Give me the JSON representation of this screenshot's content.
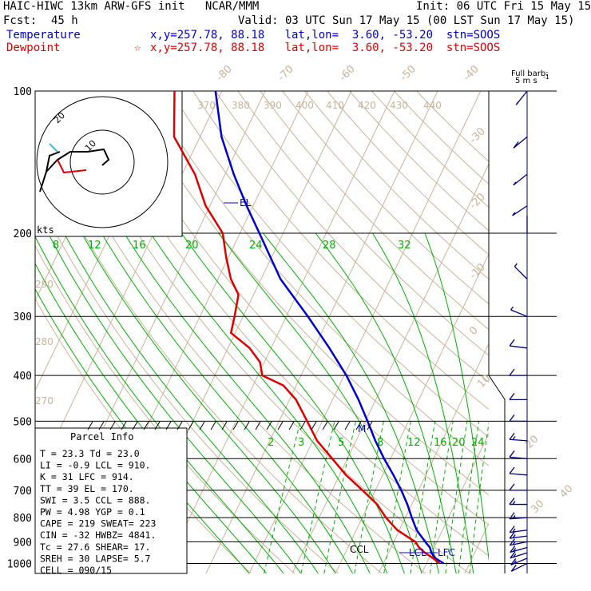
{
  "header": {
    "model": "HAIC-HIWC 13km ARW-GFS init   NCAR/MMM",
    "init": "Init: 06 UTC Fri 15 May 15",
    "fcst_label": "Fcst:",
    "fcst_value": "45 h",
    "valid": "Valid: 03 UTC Sun 17 May 15 (00 LST Sun 17 May 15)",
    "temp_label": "Temperature",
    "temp_info": "x,y=257.78, 88.18   lat,lon=  3.60, -53.20  stn=SOOS",
    "dew_label": "Dewpoint",
    "dew_star": "☆",
    "dew_info": "x,y=257.78, 88.18   lat,lon=  3.60, -53.20  stn=SOOS",
    "barb_note_1": "Full barb:",
    "barb_note_2": "5 m s",
    "barb_note_exp": "-1"
  },
  "chart_data": {
    "type": "line",
    "title": "",
    "xlabel": "",
    "ylabel": "",
    "pressure_ticks": [
      "100",
      "200",
      "300",
      "400",
      "500",
      "600",
      "700",
      "800",
      "900",
      "1000"
    ],
    "pressure_levels": [
      100,
      200,
      300,
      400,
      500,
      600,
      700,
      800,
      900,
      1000
    ],
    "isotherm_labels": [
      "-80",
      "-70",
      "-60",
      "-50",
      "-40",
      "-30",
      "-20",
      "-10",
      "0",
      "10",
      "20",
      "30",
      "40"
    ],
    "theta_labels": [
      "370",
      "380",
      "390",
      "400",
      "410",
      "420",
      "430",
      "440",
      "290",
      "280",
      "270"
    ],
    "mixing_ratio_upper": [
      "8",
      "12",
      "16",
      "20",
      "24",
      "28",
      "32"
    ],
    "mixing_ratio_lower": [
      "2",
      "3",
      "5",
      "8",
      "12",
      "16",
      "20",
      "24"
    ],
    "series": [
      {
        "name": "Temperature",
        "color": "#0000d0",
        "points": [
          [
            1000,
            24.0
          ],
          [
            975,
            21.5
          ],
          [
            950,
            20.0
          ],
          [
            925,
            19.0
          ],
          [
            900,
            17.3
          ],
          [
            850,
            14.0
          ],
          [
            800,
            11.5
          ],
          [
            750,
            9.0
          ],
          [
            700,
            6.0
          ],
          [
            650,
            2.5
          ],
          [
            600,
            -1.5
          ],
          [
            550,
            -5.5
          ],
          [
            500,
            -9.5
          ],
          [
            450,
            -14.0
          ],
          [
            400,
            -19.5
          ],
          [
            350,
            -26.5
          ],
          [
            300,
            -35.0
          ],
          [
            250,
            -45.5
          ],
          [
            200,
            -55.5
          ],
          [
            175,
            -61.5
          ],
          [
            150,
            -68.0
          ],
          [
            125,
            -75.0
          ],
          [
            100,
            -81.5
          ]
        ]
      },
      {
        "name": "Dewpoint",
        "color": "#e00000",
        "points": [
          [
            1000,
            23.0
          ],
          [
            975,
            21.0
          ],
          [
            950,
            18.5
          ],
          [
            925,
            16.5
          ],
          [
            900,
            15.0
          ],
          [
            850,
            9.5
          ],
          [
            800,
            5.5
          ],
          [
            750,
            2.0
          ],
          [
            700,
            -3.0
          ],
          [
            650,
            -8.5
          ],
          [
            600,
            -13.5
          ],
          [
            550,
            -19.0
          ],
          [
            500,
            -23.5
          ],
          [
            450,
            -28.5
          ],
          [
            420,
            -33.0
          ],
          [
            400,
            -39.0
          ],
          [
            375,
            -41.0
          ],
          [
            350,
            -45.0
          ],
          [
            325,
            -51.0
          ],
          [
            300,
            -52.0
          ],
          [
            270,
            -53.5
          ],
          [
            250,
            -57.0
          ],
          [
            225,
            -60.5
          ],
          [
            200,
            -64.0
          ],
          [
            175,
            -71.0
          ],
          [
            150,
            -77.0
          ],
          [
            125,
            -86.0
          ],
          [
            100,
            -91.0
          ]
        ]
      }
    ],
    "annotations": [
      "EL",
      "CCL",
      "LCL",
      "LFC",
      "M"
    ],
    "hodograph_label": "kts",
    "hodograph_ring_labels": [
      "20",
      "10"
    ],
    "wind_barbs": [
      {
        "p": 1000,
        "u": -10,
        "v": -5
      },
      {
        "p": 975,
        "u": -12,
        "v": -5
      },
      {
        "p": 950,
        "u": -13,
        "v": -4
      },
      {
        "p": 925,
        "u": -14,
        "v": -4
      },
      {
        "p": 900,
        "u": -15,
        "v": -3
      },
      {
        "p": 875,
        "u": -15,
        "v": -2
      },
      {
        "p": 850,
        "u": -15,
        "v": -2
      },
      {
        "p": 800,
        "u": -14,
        "v": -1
      },
      {
        "p": 750,
        "u": -13,
        "v": 0
      },
      {
        "p": 700,
        "u": -12,
        "v": 0
      },
      {
        "p": 650,
        "u": -12,
        "v": 1
      },
      {
        "p": 600,
        "u": -12,
        "v": 1
      },
      {
        "p": 550,
        "u": -13,
        "v": 1
      },
      {
        "p": 500,
        "u": -12,
        "v": 0
      },
      {
        "p": 450,
        "u": -12,
        "v": 0
      },
      {
        "p": 400,
        "u": -11,
        "v": 0
      },
      {
        "p": 350,
        "u": -8,
        "v": 1
      },
      {
        "p": 300,
        "u": -5,
        "v": 2
      },
      {
        "p": 250,
        "u": -3,
        "v": 3
      },
      {
        "p": 200,
        "u": 0,
        "v": 2
      },
      {
        "p": 175,
        "u": -3,
        "v": -2
      },
      {
        "p": 150,
        "u": -5,
        "v": -4
      },
      {
        "p": 125,
        "u": -6,
        "v": -5
      },
      {
        "p": 100,
        "u": -4,
        "v": -5
      }
    ]
  },
  "parcel_info": {
    "title": "Parcel Info",
    "rows": [
      "T   =    23.3  Td =   23.0",
      "LI  =    -0.9  LCL =  910.",
      "K   =      31  LFC =  914.",
      "TT  =      39  EL  =  170.",
      "SWI =     3.5  CCL =  888.",
      "PW  =    4.98  YGP =   0.1",
      "CAPE =    219  SWEAT=  223",
      "CIN  =    -32  HWBZ= 4841.",
      "Tc  =    27.6  SHEAR=  17.",
      "SREH =     30  LAPSE=  5.7",
      "CELL = 090/15"
    ]
  },
  "colors": {
    "temperature": "#0000d0",
    "dewpoint": "#e00000",
    "isotherm": "#c8b49a",
    "dry_adiabat": "#c8b49a",
    "moist_adiabat": "#00b000",
    "mixing_ratio": "#00b000",
    "barbs": "#000080"
  }
}
